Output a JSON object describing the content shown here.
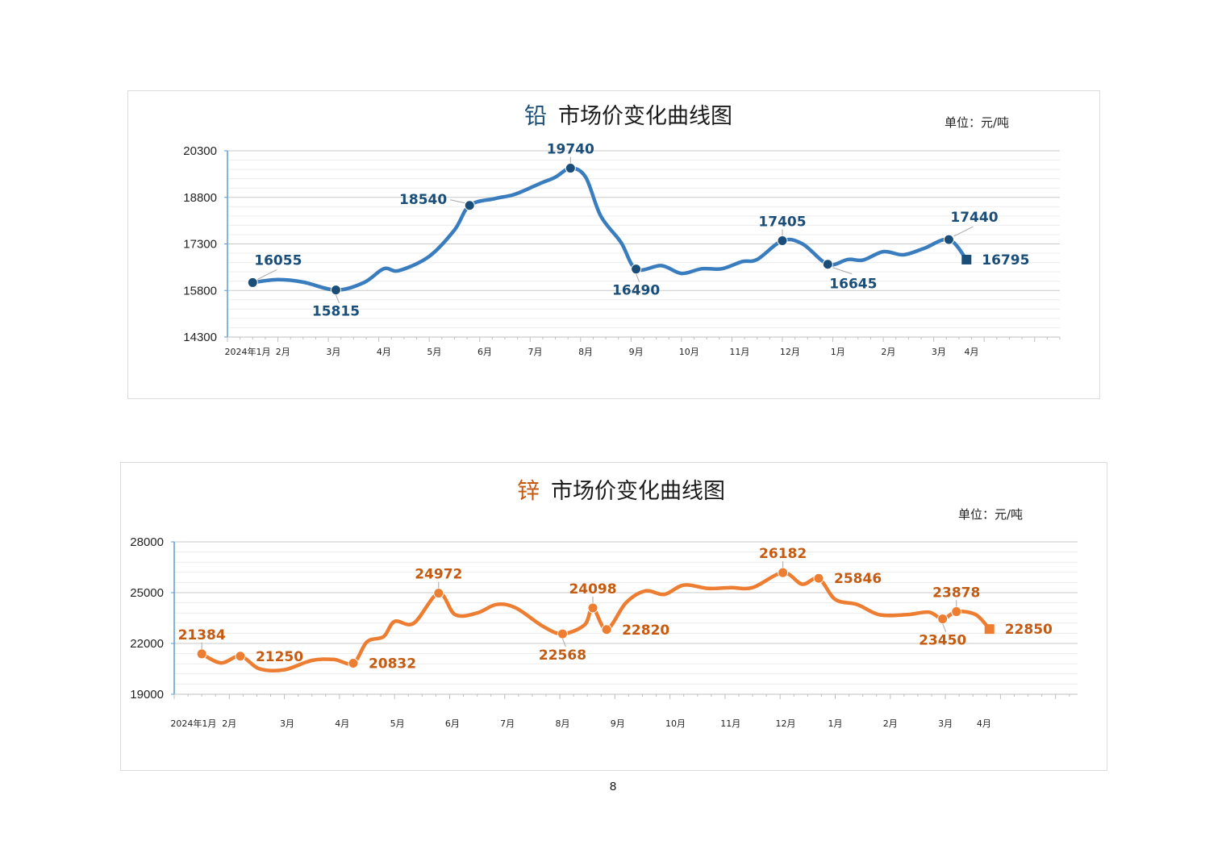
{
  "page_number": "8",
  "chart_data": [
    {
      "type": "line",
      "title_metal": "铅",
      "title_rest": "市场价变化曲线图",
      "unit": "单位：元/吨",
      "color": "#3a7dbf",
      "label_color": "#1a4e78",
      "marker_color": "#1a4e78",
      "ylim": [
        14300,
        20300
      ],
      "yticks": [
        14300,
        15800,
        17300,
        18800,
        20300
      ],
      "x_start": "2024-01",
      "x_end": "2025-05",
      "x_tick_labels": [
        {
          "label": "2024年1月",
          "t": 0.4
        },
        {
          "label": "2月",
          "t": 1.1
        },
        {
          "label": "3月",
          "t": 2.1
        },
        {
          "label": "4月",
          "t": 3.1
        },
        {
          "label": "5月",
          "t": 4.1
        },
        {
          "label": "6月",
          "t": 5.1
        },
        {
          "label": "7月",
          "t": 6.1
        },
        {
          "label": "8月",
          "t": 7.1
        },
        {
          "label": "9月",
          "t": 8.1
        },
        {
          "label": "10月",
          "t": 9.15
        },
        {
          "label": "11月",
          "t": 10.15
        },
        {
          "label": "12月",
          "t": 11.15
        },
        {
          "label": "1月",
          "t": 12.1
        },
        {
          "label": "2月",
          "t": 13.1
        },
        {
          "label": "3月",
          "t": 14.1
        },
        {
          "label": "4月",
          "t": 14.75
        }
      ],
      "series": [
        {
          "t": 0.5,
          "v": 16055
        },
        {
          "t": 1.0,
          "v": 16150
        },
        {
          "t": 1.5,
          "v": 16070
        },
        {
          "t": 2.15,
          "v": 15815
        },
        {
          "t": 2.7,
          "v": 16050
        },
        {
          "t": 3.1,
          "v": 16500
        },
        {
          "t": 3.4,
          "v": 16440
        },
        {
          "t": 4.0,
          "v": 16900
        },
        {
          "t": 4.5,
          "v": 17750
        },
        {
          "t": 4.8,
          "v": 18540
        },
        {
          "t": 5.3,
          "v": 18760
        },
        {
          "t": 5.7,
          "v": 18900
        },
        {
          "t": 6.2,
          "v": 19250
        },
        {
          "t": 6.5,
          "v": 19450
        },
        {
          "t": 6.8,
          "v": 19740
        },
        {
          "t": 7.1,
          "v": 19450
        },
        {
          "t": 7.4,
          "v": 18200
        },
        {
          "t": 7.8,
          "v": 17350
        },
        {
          "t": 8.1,
          "v": 16490
        },
        {
          "t": 8.6,
          "v": 16600
        },
        {
          "t": 9.0,
          "v": 16350
        },
        {
          "t": 9.4,
          "v": 16500
        },
        {
          "t": 9.8,
          "v": 16500
        },
        {
          "t": 10.2,
          "v": 16730
        },
        {
          "t": 10.5,
          "v": 16800
        },
        {
          "t": 11.0,
          "v": 17405
        },
        {
          "t": 11.4,
          "v": 17300
        },
        {
          "t": 11.9,
          "v": 16645
        },
        {
          "t": 12.3,
          "v": 16800
        },
        {
          "t": 12.6,
          "v": 16780
        },
        {
          "t": 13.0,
          "v": 17050
        },
        {
          "t": 13.4,
          "v": 16950
        },
        {
          "t": 13.8,
          "v": 17150
        },
        {
          "t": 14.3,
          "v": 17440
        },
        {
          "t": 14.65,
          "v": 16795
        }
      ],
      "annotations": [
        {
          "t": 0.5,
          "v": 16055,
          "label": "16055",
          "pos": "above-right"
        },
        {
          "t": 2.15,
          "v": 15815,
          "label": "15815",
          "pos": "below"
        },
        {
          "t": 4.8,
          "v": 18540,
          "label": "18540",
          "pos": "left"
        },
        {
          "t": 6.8,
          "v": 19740,
          "label": "19740",
          "pos": "above"
        },
        {
          "t": 8.1,
          "v": 16490,
          "label": "16490",
          "pos": "below"
        },
        {
          "t": 11.0,
          "v": 17405,
          "label": "17405",
          "pos": "above"
        },
        {
          "t": 11.9,
          "v": 16645,
          "label": "16645",
          "pos": "below-right"
        },
        {
          "t": 14.3,
          "v": 17440,
          "label": "17440",
          "pos": "above-right"
        },
        {
          "t": 14.65,
          "v": 16795,
          "label": "16795",
          "pos": "right",
          "last": true
        }
      ]
    },
    {
      "type": "line",
      "title_metal": "锌",
      "title_rest": "市场价变化曲线图",
      "unit": "单位：元/吨",
      "color": "#ed7d31",
      "label_color": "#c55a11",
      "marker_color": "#ed7d31",
      "ylim": [
        19000,
        28000
      ],
      "yticks": [
        19000,
        22000,
        25000,
        28000
      ],
      "x_start": "2024-01",
      "x_end": "2025-05",
      "x_tick_labels": [
        {
          "label": "2024年1月",
          "t": 0.35
        },
        {
          "label": "2月",
          "t": 1.0
        },
        {
          "label": "3月",
          "t": 2.05
        },
        {
          "label": "4月",
          "t": 3.05
        },
        {
          "label": "5月",
          "t": 4.05
        },
        {
          "label": "6月",
          "t": 5.05
        },
        {
          "label": "7月",
          "t": 6.05
        },
        {
          "label": "8月",
          "t": 7.05
        },
        {
          "label": "9月",
          "t": 8.05
        },
        {
          "label": "10月",
          "t": 9.1
        },
        {
          "label": "11月",
          "t": 10.1
        },
        {
          "label": "12月",
          "t": 11.1
        },
        {
          "label": "1月",
          "t": 12.0
        },
        {
          "label": "2月",
          "t": 13.0
        },
        {
          "label": "3月",
          "t": 14.0
        },
        {
          "label": "4月",
          "t": 14.7
        }
      ],
      "series": [
        {
          "t": 0.5,
          "v": 21384
        },
        {
          "t": 0.85,
          "v": 20850
        },
        {
          "t": 1.2,
          "v": 21250
        },
        {
          "t": 1.55,
          "v": 20500
        },
        {
          "t": 2.0,
          "v": 20450
        },
        {
          "t": 2.5,
          "v": 21000
        },
        {
          "t": 2.9,
          "v": 21050
        },
        {
          "t": 3.25,
          "v": 20832
        },
        {
          "t": 3.5,
          "v": 22100
        },
        {
          "t": 3.8,
          "v": 22400
        },
        {
          "t": 4.0,
          "v": 23300
        },
        {
          "t": 4.35,
          "v": 23200
        },
        {
          "t": 4.8,
          "v": 24972
        },
        {
          "t": 5.1,
          "v": 23700
        },
        {
          "t": 5.5,
          "v": 23800
        },
        {
          "t": 5.85,
          "v": 24300
        },
        {
          "t": 6.2,
          "v": 24100
        },
        {
          "t": 6.7,
          "v": 23000
        },
        {
          "t": 7.05,
          "v": 22568
        },
        {
          "t": 7.45,
          "v": 23100
        },
        {
          "t": 7.6,
          "v": 24098
        },
        {
          "t": 7.85,
          "v": 22820
        },
        {
          "t": 8.2,
          "v": 24400
        },
        {
          "t": 8.55,
          "v": 25100
        },
        {
          "t": 8.9,
          "v": 24900
        },
        {
          "t": 9.25,
          "v": 25450
        },
        {
          "t": 9.7,
          "v": 25250
        },
        {
          "t": 10.1,
          "v": 25300
        },
        {
          "t": 10.5,
          "v": 25300
        },
        {
          "t": 11.05,
          "v": 26182
        },
        {
          "t": 11.4,
          "v": 25500
        },
        {
          "t": 11.7,
          "v": 25846
        },
        {
          "t": 12.0,
          "v": 24600
        },
        {
          "t": 12.4,
          "v": 24300
        },
        {
          "t": 12.8,
          "v": 23700
        },
        {
          "t": 13.3,
          "v": 23700
        },
        {
          "t": 13.7,
          "v": 23850
        },
        {
          "t": 13.95,
          "v": 23450
        },
        {
          "t": 14.2,
          "v": 23878
        },
        {
          "t": 14.55,
          "v": 23700
        },
        {
          "t": 14.8,
          "v": 22850
        }
      ],
      "annotations": [
        {
          "t": 0.5,
          "v": 21384,
          "label": "21384",
          "pos": "above"
        },
        {
          "t": 1.2,
          "v": 21250,
          "label": "21250",
          "pos": "right"
        },
        {
          "t": 3.25,
          "v": 20832,
          "label": "20832",
          "pos": "right"
        },
        {
          "t": 4.8,
          "v": 24972,
          "label": "24972",
          "pos": "above"
        },
        {
          "t": 7.05,
          "v": 22568,
          "label": "22568",
          "pos": "below"
        },
        {
          "t": 7.6,
          "v": 24098,
          "label": "24098",
          "pos": "above"
        },
        {
          "t": 7.85,
          "v": 22820,
          "label": "22820",
          "pos": "right"
        },
        {
          "t": 11.05,
          "v": 26182,
          "label": "26182",
          "pos": "above"
        },
        {
          "t": 11.7,
          "v": 25846,
          "label": "25846",
          "pos": "right"
        },
        {
          "t": 13.95,
          "v": 23450,
          "label": "23450",
          "pos": "below"
        },
        {
          "t": 14.2,
          "v": 23878,
          "label": "23878",
          "pos": "above"
        },
        {
          "t": 14.8,
          "v": 22850,
          "label": "22850",
          "pos": "right",
          "last": true
        }
      ]
    }
  ]
}
